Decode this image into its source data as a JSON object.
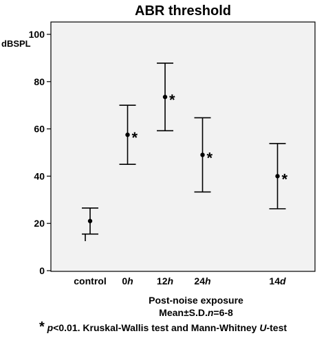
{
  "chart_data": {
    "type": "scatter",
    "title": "ABR threshold",
    "ylabel": "dBSPL",
    "ylim": [
      0,
      100
    ],
    "yticks": [
      "0",
      "20",
      "40",
      "60",
      "80",
      "100"
    ],
    "categories": [
      {
        "plain": "control",
        "italic": ""
      },
      {
        "plain": "0",
        "italic": "h"
      },
      {
        "plain": "12",
        "italic": "h"
      },
      {
        "plain": "24",
        "italic": "h"
      },
      {
        "plain": "14",
        "italic": "d"
      }
    ],
    "category_positions": [
      0,
      1,
      2,
      3,
      5
    ],
    "means": [
      21,
      57.5,
      73.5,
      49,
      40
    ],
    "sd": [
      5.5,
      12.5,
      14.3,
      15.7,
      13.8
    ],
    "significant": [
      false,
      true,
      true,
      true,
      true
    ],
    "significance_marker": "*",
    "bracket": {
      "from": 0,
      "to": 5,
      "y": 12.5
    },
    "grid": false,
    "plot_background": "#f2f2f2",
    "mark_color": "#000000",
    "xlabel": "Post-noise exposure",
    "stats_note": {
      "prefix": "Mean±S.D.",
      "n_symbol": "n",
      "n_value": "=6-8"
    },
    "test_note": {
      "star": "*",
      "p_symbol": "p",
      "text": "<0.01. Kruskal-Wallis test and Mann-Whitney ",
      "u_symbol": "U",
      "suffix": "-test"
    }
  }
}
